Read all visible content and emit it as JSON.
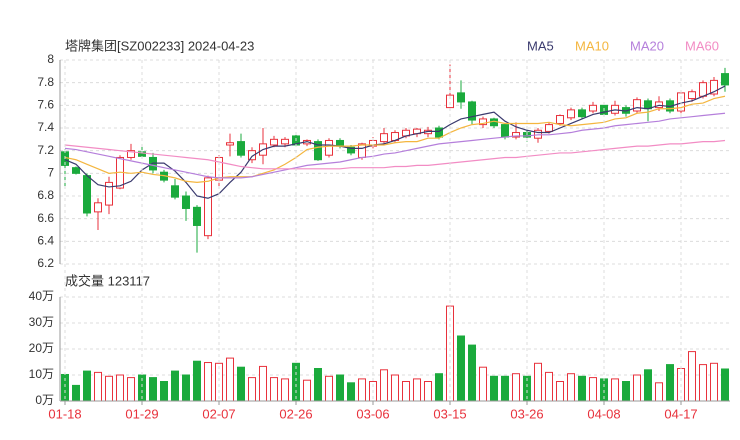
{
  "chart_data": [
    {
      "type": "candlestick",
      "title": "塔牌集团[SZ002233] 2024-04-23",
      "up_color": "#e8323c",
      "down_color": "#1aaa3c",
      "grid": true,
      "ylim": [
        6.2,
        8
      ],
      "yticks": [
        6.2,
        6.4,
        6.6,
        6.8,
        7,
        7.2,
        7.4,
        7.6,
        7.8,
        8
      ],
      "open": [
        7.19,
        7.05,
        6.98,
        6.66,
        6.72,
        6.87,
        7.14,
        7.19,
        7.14,
        7.01,
        6.89,
        6.8,
        6.7,
        6.45,
        6.94,
        7.25,
        7.28,
        7.12,
        7.16,
        7.25,
        7.26,
        7.33,
        7.26,
        7.28,
        7.16,
        7.29,
        7.23,
        7.14,
        7.24,
        7.28,
        7.29,
        7.33,
        7.35,
        7.35,
        7.4,
        7.58,
        7.71,
        7.63,
        7.43,
        7.48,
        7.43,
        7.32,
        7.36,
        7.31,
        7.37,
        7.44,
        7.49,
        7.56,
        7.55,
        7.6,
        7.53,
        7.58,
        7.55,
        7.64,
        7.58,
        7.64,
        7.55,
        7.66,
        7.68,
        7.7,
        7.88
      ],
      "high": [
        7.21,
        7.06,
        7.0,
        6.78,
        6.97,
        7.16,
        7.26,
        7.24,
        7.18,
        7.03,
        6.95,
        6.84,
        6.72,
        6.98,
        7.16,
        7.35,
        7.35,
        7.23,
        7.4,
        7.33,
        7.32,
        7.36,
        7.3,
        7.3,
        7.31,
        7.31,
        7.25,
        7.27,
        7.32,
        7.4,
        7.38,
        7.4,
        7.4,
        7.41,
        7.42,
        7.96,
        7.82,
        7.64,
        7.5,
        7.49,
        7.44,
        7.45,
        7.38,
        7.4,
        7.45,
        7.52,
        7.58,
        7.58,
        7.63,
        7.62,
        7.64,
        7.6,
        7.67,
        7.66,
        7.68,
        7.66,
        7.73,
        7.74,
        7.82,
        7.85,
        7.93
      ],
      "low": [
        6.88,
        6.99,
        6.62,
        6.5,
        6.64,
        6.86,
        7.12,
        7.14,
        7.0,
        6.92,
        6.77,
        6.58,
        6.3,
        6.42,
        6.87,
        7.15,
        7.14,
        7.09,
        7.08,
        7.23,
        7.23,
        7.24,
        7.24,
        7.11,
        7.14,
        7.22,
        7.16,
        7.12,
        7.22,
        7.25,
        7.27,
        7.31,
        7.32,
        7.32,
        7.3,
        7.56,
        7.57,
        7.43,
        7.4,
        7.4,
        7.3,
        7.3,
        7.28,
        7.27,
        7.35,
        7.42,
        7.47,
        7.48,
        7.53,
        7.5,
        7.51,
        7.5,
        7.53,
        7.46,
        7.55,
        7.53,
        7.53,
        7.63,
        7.66,
        7.68,
        7.72
      ],
      "close": [
        7.07,
        7.0,
        6.65,
        6.74,
        6.92,
        7.14,
        7.2,
        7.15,
        7.03,
        6.94,
        6.79,
        6.69,
        6.54,
        6.96,
        7.14,
        7.27,
        7.16,
        7.2,
        7.26,
        7.3,
        7.3,
        7.25,
        7.29,
        7.12,
        7.29,
        7.24,
        7.18,
        7.26,
        7.29,
        7.35,
        7.36,
        7.38,
        7.39,
        7.38,
        7.32,
        7.69,
        7.63,
        7.47,
        7.48,
        7.42,
        7.32,
        7.36,
        7.32,
        7.38,
        7.43,
        7.51,
        7.56,
        7.5,
        7.6,
        7.52,
        7.6,
        7.53,
        7.65,
        7.57,
        7.63,
        7.55,
        7.71,
        7.72,
        7.8,
        7.82,
        7.78
      ],
      "series": [
        {
          "name": "MA5",
          "color": "#3a3a6e",
          "values": [
            7.12,
            7.08,
            6.98,
            6.9,
            6.88,
            6.89,
            6.93,
            7.03,
            7.09,
            7.09,
            7.02,
            6.92,
            6.8,
            6.78,
            6.82,
            6.92,
            7.01,
            7.15,
            7.21,
            7.24,
            7.24,
            7.26,
            7.28,
            7.25,
            7.25,
            7.24,
            7.22,
            7.22,
            7.25,
            7.26,
            7.29,
            7.33,
            7.35,
            7.37,
            7.37,
            7.43,
            7.48,
            7.5,
            7.52,
            7.54,
            7.46,
            7.41,
            7.38,
            7.36,
            7.36,
            7.4,
            7.44,
            7.48,
            7.52,
            7.54,
            7.56,
            7.55,
            7.58,
            7.57,
            7.6,
            7.59,
            7.62,
            7.64,
            7.68,
            7.72,
            7.77
          ]
        },
        {
          "name": "MA10",
          "color": "#f4b63f",
          "values": [
            7.14,
            7.12,
            7.08,
            7.04,
            7.0,
            7.01,
            7.0,
            7.01,
            6.99,
            6.98,
            6.96,
            6.93,
            6.92,
            6.93,
            6.96,
            6.97,
            6.97,
            6.97,
            7.0,
            7.03,
            7.08,
            7.14,
            7.21,
            7.23,
            7.24,
            7.24,
            7.24,
            7.25,
            7.25,
            7.25,
            7.27,
            7.28,
            7.28,
            7.31,
            7.31,
            7.36,
            7.4,
            7.43,
            7.44,
            7.46,
            7.44,
            7.44,
            7.44,
            7.44,
            7.45,
            7.43,
            7.42,
            7.43,
            7.44,
            7.45,
            7.48,
            7.49,
            7.53,
            7.54,
            7.57,
            7.57,
            7.58,
            7.61,
            7.62,
            7.66,
            7.68
          ]
        },
        {
          "name": "MA20",
          "color": "#b57fdb",
          "values": [
            7.22,
            7.21,
            7.19,
            7.17,
            7.15,
            7.13,
            7.11,
            7.09,
            7.07,
            7.05,
            7.03,
            7.01,
            6.99,
            6.97,
            6.96,
            6.96,
            6.96,
            6.97,
            6.99,
            7.01,
            7.03,
            7.05,
            7.07,
            7.08,
            7.09,
            7.1,
            7.12,
            7.14,
            7.15,
            7.17,
            7.18,
            7.2,
            7.22,
            7.24,
            7.26,
            7.27,
            7.28,
            7.29,
            7.3,
            7.31,
            7.32,
            7.33,
            7.33,
            7.34,
            7.34,
            7.35,
            7.36,
            7.38,
            7.39,
            7.4,
            7.42,
            7.43,
            7.44,
            7.45,
            7.46,
            7.48,
            7.49,
            7.5,
            7.51,
            7.52,
            7.53
          ]
        },
        {
          "name": "MA60",
          "color": "#f28cc4",
          "values": [
            7.25,
            7.24,
            7.23,
            7.22,
            7.21,
            7.2,
            7.19,
            7.18,
            7.17,
            7.16,
            7.15,
            7.14,
            7.13,
            7.12,
            7.1,
            7.08,
            7.06,
            7.05,
            7.04,
            7.04,
            7.04,
            7.04,
            7.04,
            7.04,
            7.04,
            7.04,
            7.05,
            7.05,
            7.05,
            7.05,
            7.06,
            7.06,
            7.07,
            7.07,
            7.08,
            7.09,
            7.1,
            7.11,
            7.12,
            7.13,
            7.14,
            7.14,
            7.15,
            7.16,
            7.17,
            7.18,
            7.18,
            7.19,
            7.2,
            7.21,
            7.22,
            7.23,
            7.24,
            7.24,
            7.25,
            7.26,
            7.26,
            7.27,
            7.28,
            7.28,
            7.29
          ]
        }
      ]
    },
    {
      "type": "bar",
      "title": "成交量 123117",
      "grid": true,
      "ylim": [
        0,
        40
      ],
      "yticks": [
        {
          "value": 0,
          "label": "0万"
        },
        {
          "value": 10,
          "label": "10万"
        },
        {
          "value": 20,
          "label": "20万"
        },
        {
          "value": 30,
          "label": "30万"
        },
        {
          "value": 40,
          "label": "40万"
        }
      ],
      "categories": [
        "01-18",
        null,
        null,
        null,
        null,
        null,
        null,
        "01-29",
        null,
        null,
        null,
        null,
        null,
        null,
        "02-07",
        null,
        null,
        null,
        null,
        null,
        null,
        "02-26",
        null,
        null,
        null,
        null,
        null,
        null,
        "03-06",
        null,
        null,
        null,
        null,
        null,
        null,
        "03-15",
        null,
        null,
        null,
        null,
        null,
        null,
        "03-26",
        null,
        null,
        null,
        null,
        null,
        null,
        "04-08",
        null,
        null,
        null,
        null,
        null,
        null,
        "04-17",
        null,
        null,
        null,
        null
      ],
      "values": [
        10.2,
        6,
        11.5,
        11,
        9.5,
        10,
        9,
        10,
        9,
        7.5,
        11.5,
        10,
        15.3,
        14.8,
        14.5,
        16.5,
        13,
        9,
        13.3,
        9,
        8.5,
        14.5,
        8,
        12.5,
        9.5,
        10,
        7,
        8.5,
        7.5,
        12,
        10,
        7.5,
        8.5,
        7.5,
        10.5,
        36.5,
        25,
        21.5,
        13,
        9.5,
        9.5,
        10.5,
        9.5,
        14.5,
        11,
        7.5,
        10.5,
        9.5,
        9,
        8.5,
        8.5,
        7.5,
        10,
        12,
        7,
        14,
        12.5,
        19,
        14,
        14.5,
        12.3117
      ]
    }
  ]
}
